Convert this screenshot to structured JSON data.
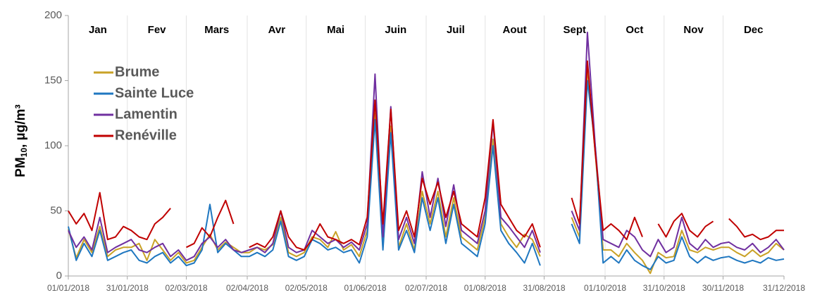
{
  "chart_data": {
    "type": "line",
    "y_label": {
      "main": "PM",
      "sub": "10",
      "unit": ", µg/m³"
    },
    "month_labels": [
      "Jan",
      "Fev",
      "Mars",
      "Avr",
      "Mai",
      "Juin",
      "Juil",
      "Aout",
      "Sept",
      "Oct",
      "Nov",
      "Dec"
    ],
    "x": [
      "2018-01-01",
      "2018-01-05",
      "2018-01-09",
      "2018-01-13",
      "2018-01-17",
      "2018-01-21",
      "2018-01-25",
      "2018-01-29",
      "2018-02-02",
      "2018-02-06",
      "2018-02-10",
      "2018-02-14",
      "2018-02-18",
      "2018-02-22",
      "2018-02-26",
      "2018-03-02",
      "2018-03-06",
      "2018-03-10",
      "2018-03-14",
      "2018-03-18",
      "2018-03-22",
      "2018-03-26",
      "2018-03-30",
      "2018-04-03",
      "2018-04-07",
      "2018-04-11",
      "2018-04-15",
      "2018-04-19",
      "2018-04-23",
      "2018-04-27",
      "2018-05-01",
      "2018-05-05",
      "2018-05-09",
      "2018-05-13",
      "2018-05-17",
      "2018-05-21",
      "2018-05-25",
      "2018-05-29",
      "2018-06-02",
      "2018-06-06",
      "2018-06-10",
      "2018-06-14",
      "2018-06-18",
      "2018-06-22",
      "2018-06-26",
      "2018-06-30",
      "2018-07-04",
      "2018-07-08",
      "2018-07-12",
      "2018-07-16",
      "2018-07-20",
      "2018-07-24",
      "2018-07-28",
      "2018-08-01",
      "2018-08-05",
      "2018-08-09",
      "2018-08-13",
      "2018-08-17",
      "2018-08-21",
      "2018-08-25",
      "2018-08-29",
      "2018-09-02",
      "2018-09-06",
      "2018-09-10",
      "2018-09-14",
      "2018-09-18",
      "2018-09-22",
      "2018-09-26",
      "2018-09-30",
      "2018-10-04",
      "2018-10-08",
      "2018-10-12",
      "2018-10-16",
      "2018-10-20",
      "2018-10-24",
      "2018-10-28",
      "2018-11-01",
      "2018-11-05",
      "2018-11-09",
      "2018-11-13",
      "2018-11-17",
      "2018-11-21",
      "2018-11-25",
      "2018-11-29",
      "2018-12-03",
      "2018-12-07",
      "2018-12-11",
      "2018-12-15",
      "2018-12-19",
      "2018-12-23",
      "2018-12-27",
      "2018-12-31"
    ],
    "series": [
      {
        "name": "Brume",
        "color": "#c9a227",
        "values": [
          36,
          14,
          28,
          18,
          38,
          15,
          20,
          22,
          22,
          25,
          12,
          28,
          20,
          12,
          18,
          10,
          12,
          22,
          32,
          20,
          26,
          22,
          18,
          18,
          22,
          20,
          24,
          45,
          18,
          15,
          18,
          30,
          28,
          22,
          34,
          20,
          24,
          15,
          35,
          125,
          22,
          115,
          22,
          40,
          20,
          65,
          40,
          65,
          30,
          60,
          30,
          25,
          20,
          45,
          105,
          40,
          30,
          22,
          32,
          28,
          15,
          null,
          null,
          null,
          45,
          30,
          160,
          95,
          20,
          20,
          15,
          25,
          18,
          12,
          2,
          18,
          14,
          15,
          35,
          20,
          18,
          22,
          20,
          22,
          22,
          18,
          15,
          20,
          15,
          18,
          25,
          20
        ]
      },
      {
        "name": "Sainte Luce",
        "color": "#1f77c0",
        "values": [
          38,
          12,
          25,
          15,
          35,
          12,
          15,
          18,
          20,
          12,
          10,
          15,
          18,
          10,
          15,
          8,
          10,
          20,
          55,
          18,
          25,
          20,
          15,
          15,
          18,
          15,
          20,
          42,
          15,
          12,
          15,
          28,
          25,
          20,
          22,
          18,
          20,
          10,
          30,
          120,
          20,
          110,
          20,
          35,
          18,
          60,
          35,
          60,
          25,
          55,
          25,
          20,
          15,
          40,
          100,
          35,
          25,
          18,
          10,
          25,
          8,
          null,
          null,
          null,
          40,
          25,
          150,
          100,
          10,
          15,
          10,
          20,
          12,
          8,
          5,
          15,
          10,
          12,
          30,
          15,
          10,
          15,
          12,
          14,
          15,
          12,
          10,
          12,
          10,
          14,
          12,
          13
        ]
      },
      {
        "name": "Lamentin",
        "color": "#7030a0",
        "values": [
          35,
          22,
          30,
          20,
          45,
          18,
          22,
          25,
          28,
          20,
          18,
          22,
          25,
          15,
          20,
          12,
          15,
          25,
          30,
          22,
          28,
          20,
          18,
          20,
          22,
          18,
          25,
          50,
          22,
          18,
          20,
          35,
          30,
          25,
          28,
          22,
          26,
          20,
          40,
          155,
          30,
          130,
          28,
          45,
          25,
          80,
          45,
          75,
          38,
          70,
          35,
          30,
          25,
          50,
          118,
          45,
          38,
          30,
          22,
          35,
          18,
          null,
          null,
          null,
          50,
          35,
          187,
          100,
          28,
          25,
          22,
          35,
          30,
          20,
          15,
          28,
          18,
          22,
          45,
          25,
          20,
          28,
          22,
          25,
          26,
          22,
          20,
          25,
          18,
          22,
          28,
          20
        ]
      },
      {
        "name": "Renéville",
        "color": "#c00000",
        "values": [
          50,
          40,
          48,
          35,
          64,
          28,
          30,
          38,
          35,
          30,
          28,
          40,
          45,
          52,
          null,
          22,
          25,
          37,
          30,
          45,
          58,
          40,
          null,
          22,
          25,
          22,
          30,
          50,
          30,
          22,
          20,
          28,
          40,
          30,
          28,
          25,
          28,
          24,
          45,
          135,
          40,
          128,
          35,
          50,
          30,
          75,
          55,
          72,
          45,
          65,
          40,
          35,
          30,
          60,
          120,
          55,
          45,
          35,
          30,
          40,
          22,
          null,
          null,
          null,
          60,
          40,
          165,
          95,
          35,
          40,
          35,
          28,
          45,
          30,
          null,
          40,
          30,
          42,
          48,
          35,
          30,
          38,
          42,
          null,
          44,
          38,
          30,
          32,
          28,
          30,
          35,
          35
        ]
      }
    ],
    "xlim": [
      "2018-01-01",
      "2018-12-31"
    ],
    "xticks": [
      {
        "value": "2018-01-01",
        "label": "01/01/2018"
      },
      {
        "value": "2018-01-31",
        "label": "31/01/2018"
      },
      {
        "value": "2018-03-02",
        "label": "02/03/2018"
      },
      {
        "value": "2018-04-02",
        "label": "02/04/2018"
      },
      {
        "value": "2018-05-02",
        "label": "02/05/2018"
      },
      {
        "value": "2018-06-01",
        "label": "01/06/2018"
      },
      {
        "value": "2018-07-02",
        "label": "02/07/2018"
      },
      {
        "value": "2018-08-01",
        "label": "01/08/2018"
      },
      {
        "value": "2018-08-31",
        "label": "31/08/2018"
      },
      {
        "value": "2018-10-01",
        "label": "01/10/2018"
      },
      {
        "value": "2018-10-31",
        "label": "31/10/2018"
      },
      {
        "value": "2018-11-30",
        "label": "30/11/2018"
      },
      {
        "value": "2018-12-31",
        "label": "31/12/2018"
      }
    ],
    "ylim": [
      0,
      200
    ],
    "yticks": [
      0,
      50,
      100,
      150,
      200
    ],
    "legend": "top-left"
  }
}
